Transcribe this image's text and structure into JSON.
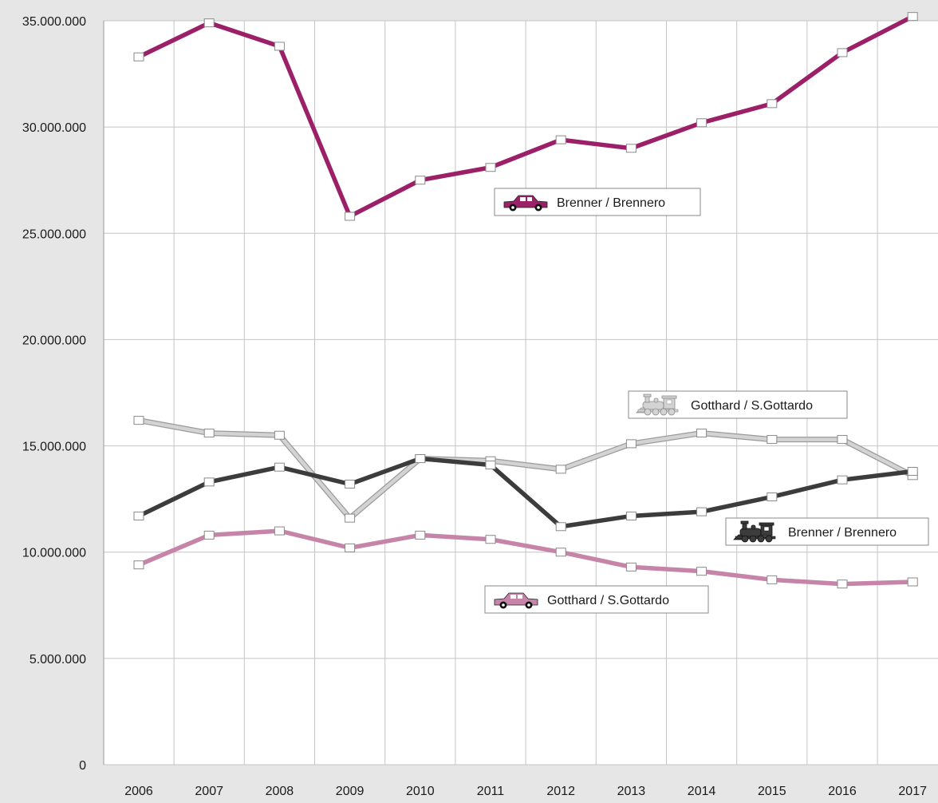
{
  "chart_data": {
    "type": "line",
    "title": "",
    "xlabel": "",
    "ylabel": "",
    "categories": [
      "2006",
      "2007",
      "2008",
      "2009",
      "2010",
      "2011",
      "2012",
      "2013",
      "2014",
      "2015",
      "2016",
      "2017"
    ],
    "ylim": [
      0,
      35000000
    ],
    "yticks": [
      {
        "value": 0,
        "label": "0"
      },
      {
        "value": 5000000,
        "label": "5.000.000"
      },
      {
        "value": 10000000,
        "label": "10.000.000"
      },
      {
        "value": 15000000,
        "label": "15.000.000"
      },
      {
        "value": 20000000,
        "label": "20.000.000"
      },
      {
        "value": 25000000,
        "label": "25.000.000"
      },
      {
        "value": 30000000,
        "label": "30.000.000"
      },
      {
        "value": 35000000,
        "label": "35.000.000"
      }
    ],
    "grid": true,
    "series": [
      {
        "name": "Brenner / Brennero",
        "mode": "road",
        "icon": "car-icon",
        "color": "#9b2068",
        "values": [
          33300000,
          34900000,
          33800000,
          25800000,
          27500000,
          28100000,
          29400000,
          29000000,
          30200000,
          31100000,
          33500000,
          35200000
        ]
      },
      {
        "name": "Gotthard / S.Gottardo",
        "mode": "rail",
        "icon": "locomotive-icon",
        "color": "#d3d3d3",
        "values": [
          16200000,
          15600000,
          15500000,
          11600000,
          14400000,
          14300000,
          13900000,
          15100000,
          15600000,
          15300000,
          15300000,
          13600000
        ]
      },
      {
        "name": "Brenner / Brennero",
        "mode": "rail",
        "icon": "locomotive-icon",
        "color": "#3c3c3c",
        "values": [
          11700000,
          13300000,
          14000000,
          13200000,
          14400000,
          14100000,
          11200000,
          11700000,
          11900000,
          12600000,
          13400000,
          13800000
        ]
      },
      {
        "name": "Gotthard / S.Gottardo",
        "mode": "road",
        "icon": "car-icon",
        "color": "#c784a9",
        "values": [
          9400000,
          10800000,
          11000000,
          10200000,
          10800000,
          10600000,
          10000000,
          9300000,
          9100000,
          8700000,
          8500000,
          8600000
        ]
      }
    ]
  }
}
